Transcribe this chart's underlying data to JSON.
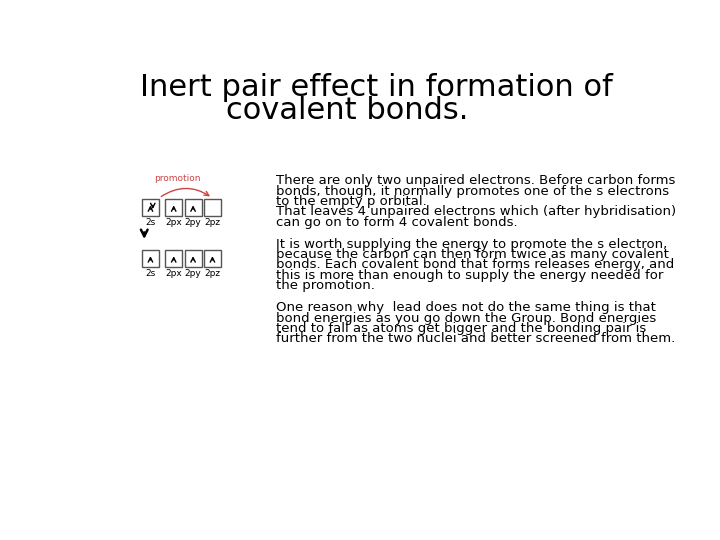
{
  "title_line1": "Inert pair effect in formation of",
  "title_line2": "covalent bonds.",
  "title_fontsize": 22,
  "bg_color": "#ffffff",
  "text_color": "#000000",
  "promotion_label": "promotion",
  "promotion_color": "#cc4444",
  "para1_line1": "There are only two unpaired electrons. Before carbon forms",
  "para1_line2": "bonds, though, it normally promotes one of the s electrons",
  "para1_line3": "to the empty p orbital.",
  "para1_line4": "That leaves 4 unpaired electrons which (after hybridisation)",
  "para1_line5": "can go on to form 4 covalent bonds.",
  "para2_line1": "It is worth supplying the energy to promote the s electron,",
  "para2_line2": "because the carbon can then form twice as many covalent",
  "para2_line3": "bonds. Each covalent bond that forms releases energy, and",
  "para2_line4": "this is more than enough to supply the energy needed for",
  "para2_line5": "the promotion.",
  "para3_line1": "One reason why  lead does not do the same thing is that",
  "para3_line2": "bond energies as you go down the Group. Bond energies",
  "para3_line3": "tend to fall as atoms get bigger and the bonding pair is",
  "para3_line4": "further from the two nuclei and better screened from them.",
  "text_fontsize": 9.5,
  "labels_top": [
    "2px",
    "2py",
    "2pz"
  ],
  "labels_bottom": [
    "2px",
    "2py",
    "2pz"
  ],
  "label_2s_top": "2s",
  "label_2s_bottom": "2s"
}
